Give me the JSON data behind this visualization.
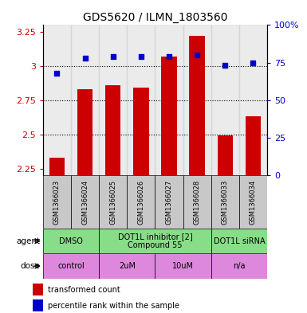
{
  "title": "GDS5620 / ILMN_1803560",
  "samples": [
    "GSM1366023",
    "GSM1366024",
    "GSM1366025",
    "GSM1366026",
    "GSM1366027",
    "GSM1366028",
    "GSM1366033",
    "GSM1366034"
  ],
  "bar_values": [
    2.33,
    2.83,
    2.86,
    2.84,
    3.07,
    3.22,
    2.49,
    2.63
  ],
  "dot_values": [
    68,
    78,
    79,
    79,
    79,
    80,
    73,
    75
  ],
  "ylim_left": [
    2.2,
    3.3
  ],
  "ylim_right": [
    0,
    100
  ],
  "yticks_left": [
    2.25,
    2.5,
    2.75,
    3.0,
    3.25
  ],
  "yticks_right": [
    0,
    25,
    50,
    75,
    100
  ],
  "ytick_labels_left": [
    "2.25",
    "2.5",
    "2.75",
    "3",
    "3.25"
  ],
  "ytick_labels_right": [
    "0",
    "25",
    "50",
    "75",
    "100%"
  ],
  "bar_color": "#cc0000",
  "dot_color": "#0000cc",
  "agent_groups": [
    {
      "label": "DMSO",
      "start": 0,
      "end": 2,
      "color": "#88dd88"
    },
    {
      "label": "DOT1L inhibitor [2]\nCompound 55",
      "start": 2,
      "end": 6,
      "color": "#88dd88"
    },
    {
      "label": "DOT1L siRNA",
      "start": 6,
      "end": 8,
      "color": "#88dd88"
    }
  ],
  "dose_groups": [
    {
      "label": "control",
      "start": 0,
      "end": 2,
      "color": "#dd88dd"
    },
    {
      "label": "2uM",
      "start": 2,
      "end": 4,
      "color": "#dd88dd"
    },
    {
      "label": "10uM",
      "start": 4,
      "end": 6,
      "color": "#dd88dd"
    },
    {
      "label": "n/a",
      "start": 6,
      "end": 8,
      "color": "#dd88dd"
    }
  ],
  "agent_label": "agent",
  "dose_label": "dose",
  "legend_bar_label": "transformed count",
  "legend_dot_label": "percentile rank within the sample",
  "sample_cell_color": "#c8c8c8",
  "bar_width": 0.55,
  "title_fontsize": 10,
  "tick_fontsize": 8,
  "sample_fontsize": 6,
  "label_fontsize": 7.5,
  "group_fontsize": 7
}
